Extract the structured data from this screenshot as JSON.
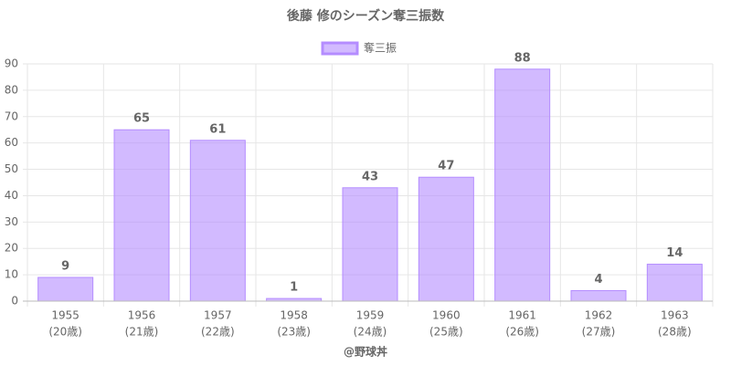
{
  "chart_data": {
    "type": "bar",
    "title": "後藤 修のシーズン奪三振数",
    "categories": [
      "1955",
      "1956",
      "1957",
      "1958",
      "1959",
      "1960",
      "1961",
      "1962",
      "1963"
    ],
    "age_labels": [
      "(20歳)",
      "(21歳)",
      "(22歳)",
      "(23歳)",
      "(24歳)",
      "(25歳)",
      "(26歳)",
      "(27歳)",
      "(28歳)"
    ],
    "series": [
      {
        "name": "奪三振",
        "color": "#b48cff",
        "values": [
          9,
          65,
          61,
          1,
          43,
          47,
          88,
          4,
          14
        ]
      }
    ],
    "x_label": "@野球丼",
    "ylim": [
      0,
      90
    ],
    "yticks": [
      0,
      10,
      20,
      30,
      40,
      50,
      60,
      70,
      80,
      90
    ],
    "grid": true,
    "legend": "top"
  }
}
